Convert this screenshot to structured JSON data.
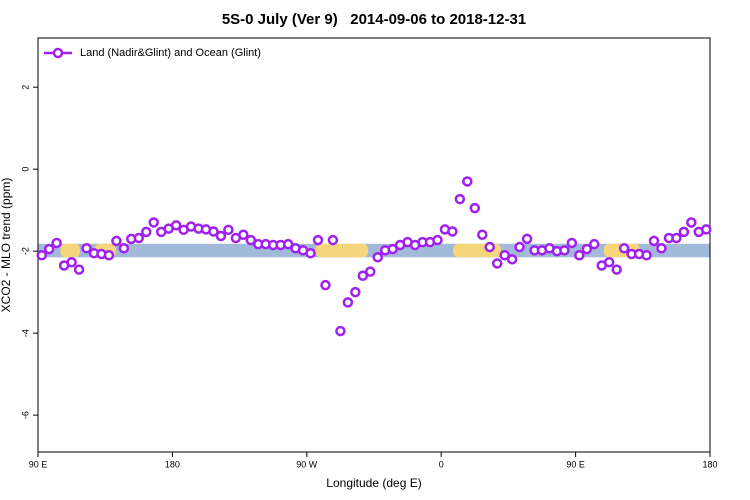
{
  "chart_data": {
    "type": "line",
    "title": "5S-0 July (Ver 9)   2014-09-06 to 2018-12-31",
    "xlabel": "Longitude (deg E)",
    "ylabel": "XCO2 - MLO trend (ppm)",
    "xlim": [
      90,
      540
    ],
    "ylim": [
      -6.9,
      3.2
    ],
    "xticks": [
      {
        "value": 90,
        "label": "90 E"
      },
      {
        "value": 180,
        "label": "180"
      },
      {
        "value": 270,
        "label": "90 W"
      },
      {
        "value": 360,
        "label": "0"
      },
      {
        "value": 450,
        "label": "90 E"
      },
      {
        "value": 540,
        "label": "180"
      }
    ],
    "yticks": [
      2,
      0,
      -2,
      -4,
      -6
    ],
    "legend": "top-left",
    "band": {
      "y": [
        -2.15,
        -1.82
      ],
      "color": "#a3b9d9"
    },
    "land": {
      "color": "#f6d67a",
      "x": [
        [
          105,
          118
        ],
        [
          128,
          142
        ],
        [
          276,
          311
        ],
        [
          368,
          400
        ],
        [
          469,
          493
        ]
      ]
    },
    "x": [
      92.5,
      97.5,
      102.5,
      107.5,
      112.5,
      117.5,
      122.5,
      127.5,
      132.5,
      137.5,
      142.5,
      147.5,
      152.5,
      157.5,
      162.5,
      167.5,
      172.5,
      177.5,
      182.5,
      187.5,
      192.5,
      197.5,
      202.5,
      207.5,
      212.5,
      217.5,
      222.5,
      227.5,
      232.5,
      237.5,
      242.5,
      247.5,
      252.5,
      257.5,
      262.5,
      267.5,
      272.5,
      277.5,
      282.5,
      287.5,
      292.5,
      297.5,
      302.5,
      307.5,
      312.5,
      317.5,
      322.5,
      327.5,
      332.5,
      337.5,
      342.5,
      347.5,
      352.5,
      357.5,
      362.5,
      367.5,
      372.5,
      377.5,
      382.5,
      387.5,
      392.5,
      397.5,
      402.5,
      407.5,
      412.5,
      417.5,
      422.5,
      427.5,
      432.5,
      437.5,
      442.5,
      447.5,
      452.5,
      457.5,
      462.5,
      467.5,
      472.5,
      477.5,
      482.5,
      487.5,
      492.5,
      497.5,
      502.5,
      507.5,
      512.5,
      517.5,
      522.5,
      527.5,
      532.5,
      537.5
    ],
    "series": [
      {
        "name": "Land (Nadir&Glint) and Ocean (Glint)",
        "color": "#a020f0",
        "values": [
          -2.1,
          -1.95,
          -1.8,
          -2.35,
          -2.27,
          -2.45,
          -1.93,
          -2.05,
          -2.07,
          -2.1,
          -1.75,
          -1.93,
          -1.7,
          -1.68,
          -1.53,
          -1.3,
          -1.53,
          -1.45,
          -1.37,
          -1.48,
          -1.4,
          -1.45,
          -1.47,
          -1.52,
          -1.63,
          -1.48,
          -1.68,
          -1.6,
          -1.73,
          -1.83,
          -1.83,
          -1.85,
          -1.85,
          -1.83,
          -1.93,
          -1.98,
          -2.05,
          -1.73,
          -2.83,
          -1.73,
          -3.95,
          -3.25,
          -3.0,
          -2.6,
          -2.5,
          -2.15,
          -1.98,
          -1.95,
          -1.85,
          -1.78,
          -1.85,
          -1.78,
          -1.78,
          -1.73,
          -1.47,
          -1.52,
          -0.73,
          -0.3,
          -0.95,
          -1.6,
          -1.9,
          -2.3,
          -2.1,
          -2.2,
          -1.9,
          -1.7,
          -1.98,
          -1.98,
          -1.93,
          -2.0,
          -1.98,
          -1.8,
          -2.1,
          -1.95,
          -1.83,
          -2.35,
          -2.27,
          -2.45,
          -1.93,
          -2.07,
          -2.07,
          -2.1,
          -1.75,
          -1.93,
          -1.68,
          -1.68,
          -1.53,
          -1.3,
          -1.53,
          -1.47
        ]
      }
    ]
  }
}
